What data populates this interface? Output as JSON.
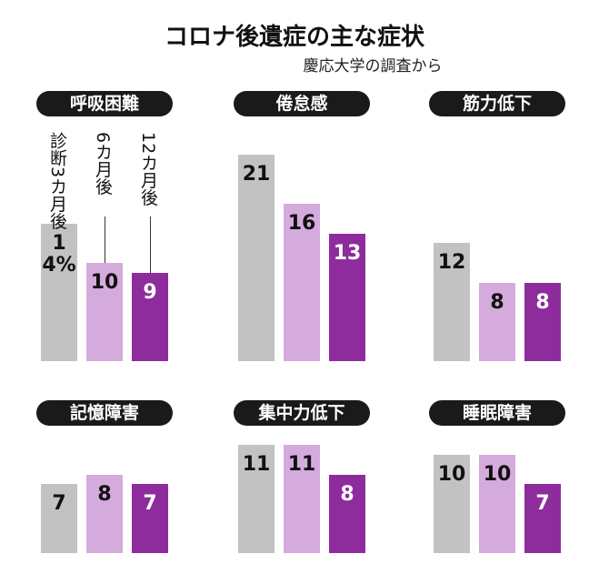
{
  "title": "コロナ後遺症の主な症状",
  "subtitle": "慶応大学の調査から",
  "chart_data": [
    {
      "type": "bar",
      "title": "呼吸困難",
      "categories": [
        "診断3カ月後",
        "6カ月後",
        "12カ月後"
      ],
      "values": [
        14,
        10,
        9
      ],
      "value_labels": [
        "14%",
        "10",
        "9"
      ],
      "colors": [
        "#c2c2c2",
        "#d5aadd",
        "#8e2c9e"
      ]
    },
    {
      "type": "bar",
      "title": "倦怠感",
      "categories": [
        null,
        null,
        null
      ],
      "values": [
        21,
        16,
        13
      ],
      "colors": [
        "#c2c2c2",
        "#d5aadd",
        "#8e2c9e"
      ]
    },
    {
      "type": "bar",
      "title": "筋力低下",
      "categories": [
        null,
        null,
        null
      ],
      "values": [
        12,
        8,
        8
      ],
      "colors": [
        "#c2c2c2",
        "#d5aadd",
        "#8e2c9e"
      ]
    },
    {
      "type": "bar",
      "title": "記憶障害",
      "categories": [
        null,
        null,
        null
      ],
      "values": [
        7,
        8,
        7
      ],
      "colors": [
        "#c2c2c2",
        "#d5aadd",
        "#8e2c9e"
      ]
    },
    {
      "type": "bar",
      "title": "集中力低下",
      "categories": [
        null,
        null,
        null
      ],
      "values": [
        11,
        11,
        8
      ],
      "colors": [
        "#c2c2c2",
        "#d5aadd",
        "#8e2c9e"
      ]
    },
    {
      "type": "bar",
      "title": "睡眠障害",
      "categories": [
        null,
        null,
        null
      ],
      "values": [
        10,
        10,
        7
      ],
      "colors": [
        "#c2c2c2",
        "#d5aadd",
        "#8e2c9e"
      ]
    }
  ]
}
